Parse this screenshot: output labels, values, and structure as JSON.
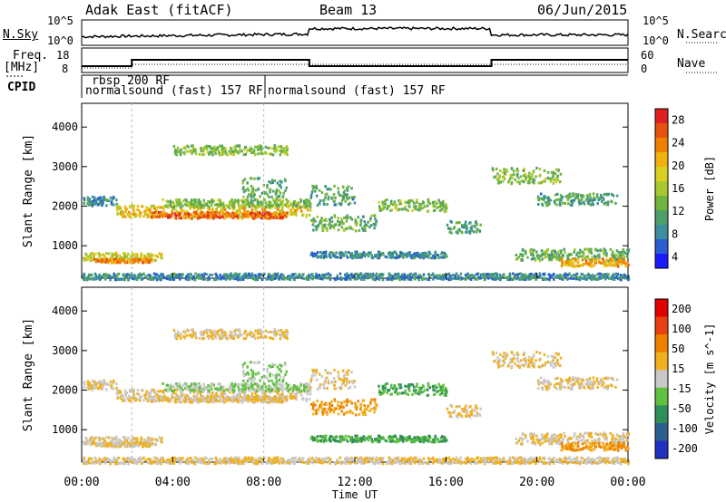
{
  "header": {
    "title_left": "Adak East (fitACF)",
    "title_center": "Beam 13",
    "title_right": "06/Jun/2015"
  },
  "strip_labels": {
    "nsky": "N.Sky",
    "nsky_ticks": [
      "10^5",
      "10^0"
    ],
    "nsearch": "N.Search",
    "nsearch_ticks": [
      "10^5",
      "10^0"
    ],
    "freq": "Freq.",
    "freq_unit": "[MHz]",
    "freq_ticks": [
      "18",
      "8"
    ],
    "nave": "Nave",
    "nave_ticks": [
      "60",
      "0"
    ],
    "cpid": "CPID"
  },
  "cpid_labels": [
    "rbsp 200 RF",
    "normalsound (fast) 157 RF",
    "normalsound (fast) 157 RF"
  ],
  "chart_data": [
    {
      "type": "heatmap",
      "title": "",
      "xlabel": "Time UT",
      "ylabel": "Slant Range [km]",
      "x_ticks": [
        "00:00",
        "04:00",
        "08:00",
        "12:00",
        "16:00",
        "20:00",
        "00:00"
      ],
      "y_ticks": [
        1000,
        2000,
        3000,
        4000
      ],
      "ylim": [
        180,
        4600
      ],
      "colorbar": {
        "label": "Power [dB]",
        "ticks": [
          4,
          8,
          12,
          16,
          20,
          24,
          28
        ],
        "colors": [
          "#1a1aff",
          "#2a5ecf",
          "#3b8f9c",
          "#4ea06a",
          "#6fb43c",
          "#a8c830",
          "#d8d020",
          "#f0b010",
          "#f08000",
          "#e85010",
          "#e02020"
        ]
      }
    },
    {
      "type": "heatmap",
      "title": "",
      "xlabel": "Time UT",
      "ylabel": "Slant Range [km]",
      "x_ticks": [
        "00:00",
        "04:00",
        "08:00",
        "12:00",
        "16:00",
        "20:00",
        "00:00"
      ],
      "y_ticks": [
        1000,
        2000,
        3000,
        4000
      ],
      "ylim": [
        180,
        4600
      ],
      "colorbar": {
        "label": "Velocity [m s^-1]",
        "ticks": [
          200,
          100,
          50,
          15,
          -15,
          -50,
          -100,
          -200
        ],
        "colors": [
          "#2030c0",
          "#2a6090",
          "#2f8f5a",
          "#60c040",
          "#c8c8c8",
          "#f0b020",
          "#f08000",
          "#e84010",
          "#e00000"
        ]
      }
    }
  ]
}
